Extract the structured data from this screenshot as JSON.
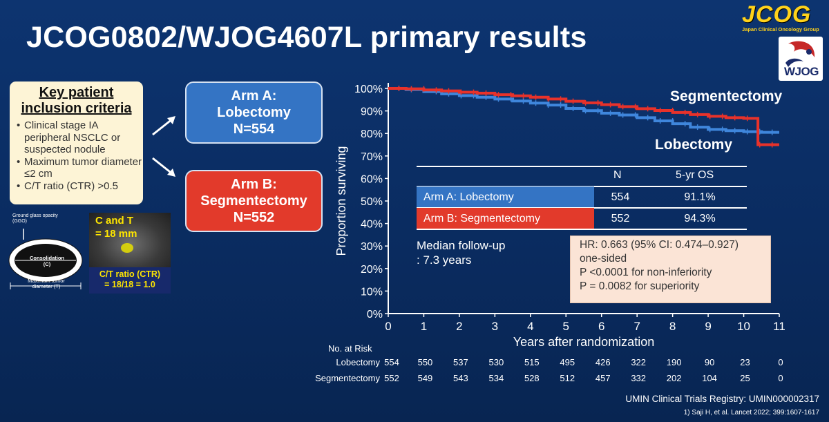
{
  "slide_title": "JCOG0802/WJOG4607L primary results",
  "logos": {
    "jcog_text": "JCOG",
    "jcog_sub": "Japan Clinical Oncology Group",
    "wjog_text": "WJOG"
  },
  "criteria": {
    "heading": "Key patient inclusion criteria",
    "items": [
      "Clinical stage IA peripheral NSCLC or suspected nodule",
      "Maximum tumor diameter ≤2 cm",
      "C/T ratio (CTR) >0.5"
    ]
  },
  "diagram": {
    "ggo_label": "Ground glass opacity (GGO)",
    "consolidation_label": "Consolidation (C)",
    "max_tumor_label": "Maximum tumor diameter (T)",
    "ct_caption_line1": "C and T",
    "ct_caption_line2": "= 18 mm",
    "ctr_line1": "C/T ratio (CTR)",
    "ctr_line2": "= 18/18 = 1.0"
  },
  "arms": {
    "a": {
      "line1": "Arm A:",
      "line2": "Lobectomy",
      "line3": "N=554",
      "color": "#3474c4"
    },
    "b": {
      "line1": "Arm B:",
      "line2": "Segmentectomy",
      "line3": "N=552",
      "color": "#e23a2b"
    }
  },
  "curve_labels": {
    "segmentectomy": "Segmentectomy",
    "lobectomy": "Lobectomy"
  },
  "table": {
    "col_n": "N",
    "col_os": "5-yr OS",
    "rows": [
      {
        "label": "Arm A: Lobectomy",
        "n": "554",
        "os": "91.1%",
        "color": "#3474c4"
      },
      {
        "label": "Arm B: Segmentectomy",
        "n": "552",
        "os": "94.3%",
        "color": "#e23a2b"
      }
    ]
  },
  "median": {
    "line1": "Median follow-up",
    "line2": ": 7.3 years"
  },
  "hr_box": {
    "line1": "HR: 0.663 (95% CI: 0.474–0.927)",
    "line2": "one-sided",
    "line3": "P <0.0001 for non-inferiority",
    "line4": "P = 0.0082 for superiority"
  },
  "risk_table": {
    "title": "No. at Risk",
    "rows": [
      {
        "label": "Lobectomy",
        "values": [
          "554",
          "550",
          "537",
          "530",
          "515",
          "495",
          "426",
          "322",
          "190",
          "90",
          "23",
          "0"
        ]
      },
      {
        "label": "Segmentectomy",
        "values": [
          "552",
          "549",
          "543",
          "534",
          "528",
          "512",
          "457",
          "332",
          "202",
          "104",
          "25",
          "0"
        ]
      }
    ]
  },
  "footer": {
    "registry": "UMIN Clinical Trials Registry: UMIN000002317",
    "citation": "1) Saji H, et al. Lancet 2022; 399:1607-1617"
  },
  "chart_data": {
    "type": "line",
    "xlabel": "Years after randomization",
    "ylabel": "Proportion surviving",
    "xlim": [
      0,
      11
    ],
    "ylim": [
      0,
      100
    ],
    "xticks": [
      "0",
      "1",
      "2",
      "3",
      "4",
      "5",
      "6",
      "7",
      "8",
      "9",
      "10",
      "11"
    ],
    "yticks": [
      "0%",
      "10%",
      "20%",
      "30%",
      "40%",
      "50%",
      "60%",
      "70%",
      "80%",
      "90%",
      "100%"
    ],
    "series": [
      {
        "name": "Lobectomy",
        "color": "#3f86dc",
        "x": [
          0,
          0.5,
          1,
          1.5,
          2,
          2.5,
          3,
          3.5,
          4,
          4.5,
          5,
          5.5,
          6,
          6.5,
          7,
          7.5,
          8,
          8.5,
          9,
          9.5,
          10,
          10.5,
          11
        ],
        "y": [
          100,
          99.5,
          98.6,
          97.6,
          96.8,
          96.1,
          95.3,
          94.4,
          93.5,
          92.6,
          91.1,
          90.1,
          89.0,
          88.2,
          87.0,
          85.6,
          84.3,
          82.8,
          81.8,
          81.2,
          80.8,
          80.5,
          80.5
        ]
      },
      {
        "name": "Segmentectomy",
        "color": "#e8322a",
        "x": [
          0,
          0.5,
          1,
          1.5,
          2,
          2.5,
          3,
          3.5,
          4,
          4.5,
          5,
          5.5,
          6,
          6.5,
          7,
          7.5,
          8,
          8.5,
          9,
          9.5,
          10,
          10.3,
          10.4,
          11
        ],
        "y": [
          100,
          99.8,
          99.3,
          98.9,
          98.3,
          97.9,
          97.2,
          96.7,
          96.1,
          95.3,
          94.3,
          93.6,
          92.8,
          91.9,
          91.0,
          90.2,
          89.3,
          88.4,
          87.6,
          87.0,
          86.7,
          86.7,
          75.0,
          75.0
        ]
      }
    ]
  }
}
